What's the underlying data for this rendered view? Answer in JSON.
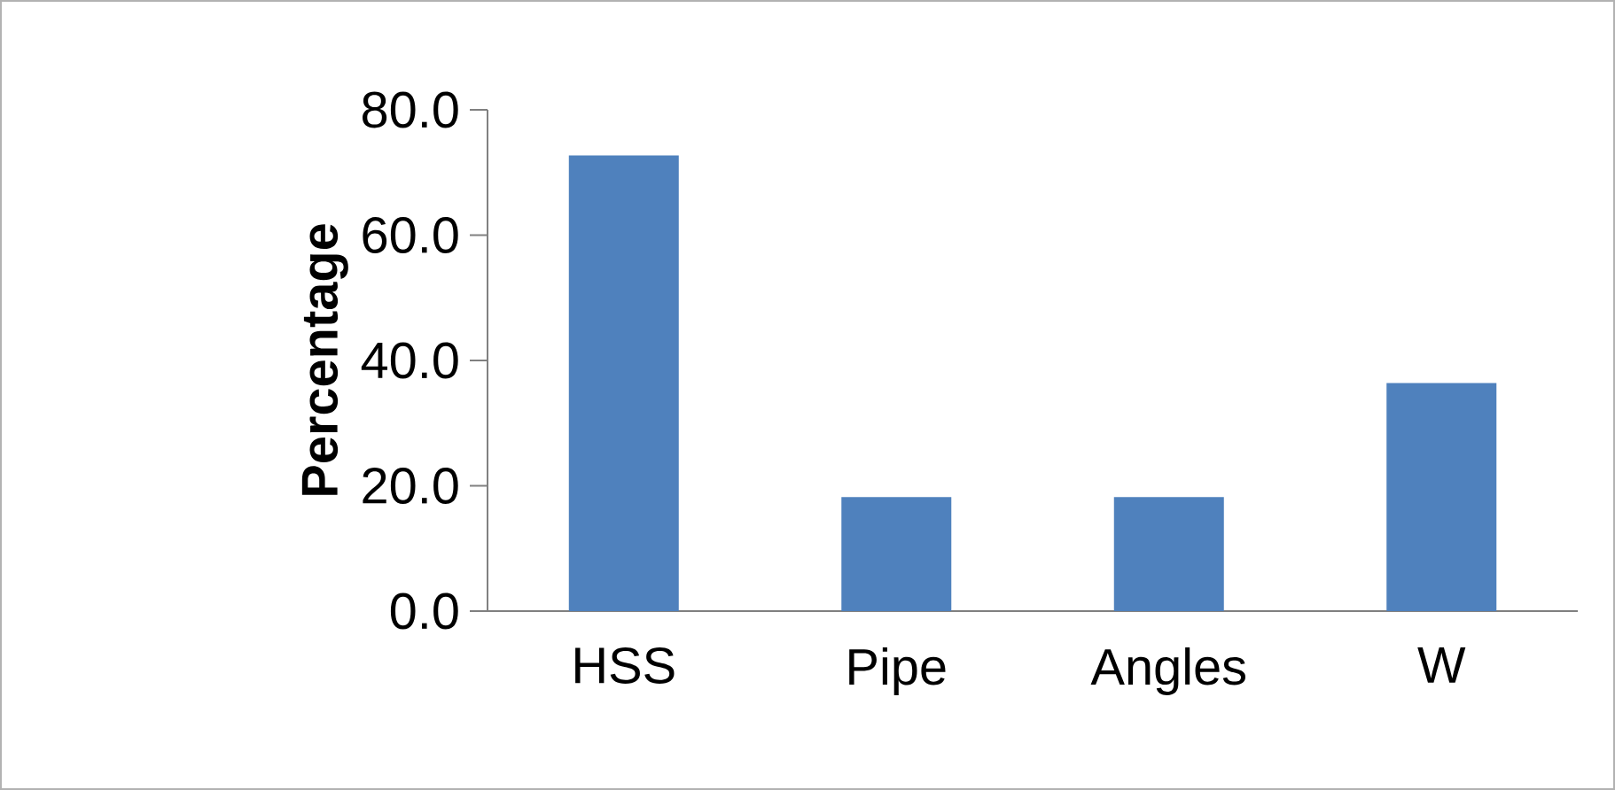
{
  "chart_data": {
    "type": "bar",
    "ylabel": "Percentage",
    "categories": [
      "HSS",
      "Pipe",
      "Angles",
      "W"
    ],
    "values": [
      72.7,
      18.2,
      18.2,
      36.4
    ],
    "color": "#4f81bd",
    "ylim": [
      0,
      80
    ],
    "yticks": [
      {
        "value": 0,
        "label": "0.0"
      },
      {
        "value": 20,
        "label": "20.0"
      },
      {
        "value": 40,
        "label": "40.0"
      },
      {
        "value": 60,
        "label": "60.0"
      },
      {
        "value": 80,
        "label": "80.0"
      }
    ]
  }
}
